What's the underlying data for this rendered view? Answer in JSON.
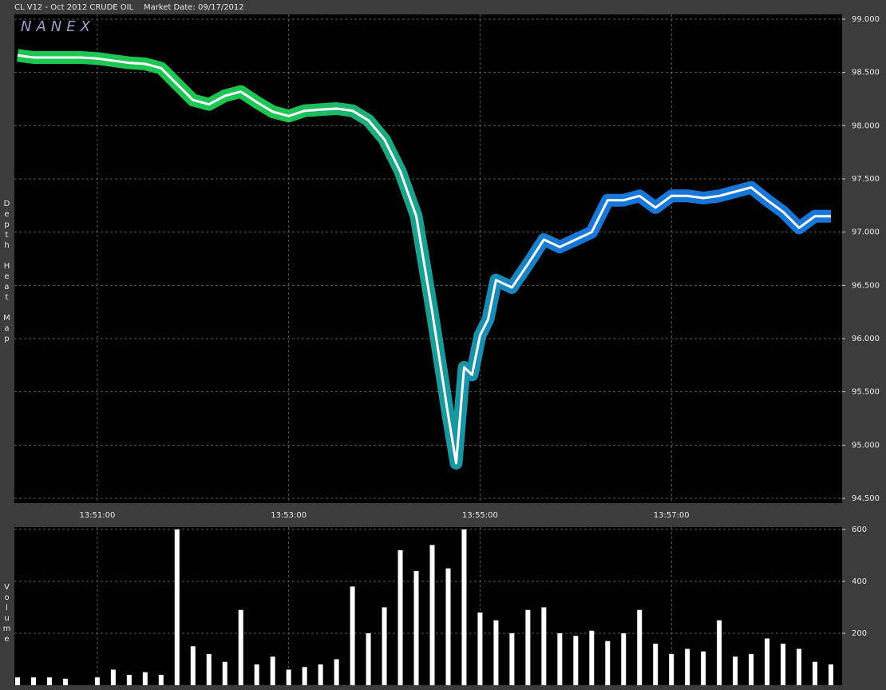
{
  "chart_data": [
    {
      "type": "line",
      "title": "CL V12 - Oct 2012 CRUDE OIL",
      "subtitle": "Market Date: 09/17/2012",
      "watermark": "NANEX",
      "y_label": "Depth Heat Map",
      "color": "#ffffff",
      "heat_colors": [
        "#22e860",
        "#22e860",
        "#1a8cff",
        "#1a8cff"
      ],
      "grid": true,
      "x": [
        "13:50:10",
        "13:50:20",
        "13:50:30",
        "13:50:40",
        "13:50:50",
        "13:51:00",
        "13:51:10",
        "13:51:20",
        "13:51:30",
        "13:51:40",
        "13:51:50",
        "13:52:00",
        "13:52:10",
        "13:52:20",
        "13:52:30",
        "13:52:40",
        "13:52:50",
        "13:53:00",
        "13:53:10",
        "13:53:20",
        "13:53:30",
        "13:53:40",
        "13:53:50",
        "13:54:00",
        "13:54:10",
        "13:54:20",
        "13:54:30",
        "13:54:40",
        "13:54:45",
        "13:54:50",
        "13:54:55",
        "13:55:00",
        "13:55:05",
        "13:55:10",
        "13:55:20",
        "13:55:30",
        "13:55:40",
        "13:55:50",
        "13:56:00",
        "13:56:10",
        "13:56:20",
        "13:56:30",
        "13:56:40",
        "13:56:50",
        "13:57:00",
        "13:57:10",
        "13:57:20",
        "13:57:30",
        "13:57:40",
        "13:57:50",
        "13:58:00",
        "13:58:10",
        "13:58:20",
        "13:58:30",
        "13:58:40"
      ],
      "values": [
        98.66,
        98.64,
        98.64,
        98.64,
        98.64,
        98.63,
        98.61,
        98.59,
        98.58,
        98.54,
        98.39,
        98.24,
        98.2,
        98.28,
        98.32,
        98.22,
        98.13,
        98.09,
        98.14,
        98.15,
        98.16,
        98.14,
        98.05,
        97.87,
        97.57,
        97.15,
        96.25,
        95.28,
        94.83,
        95.73,
        95.66,
        96.03,
        96.18,
        96.55,
        96.48,
        96.7,
        96.93,
        96.86,
        96.93,
        97.0,
        97.3,
        97.3,
        97.34,
        97.23,
        97.34,
        97.34,
        97.32,
        97.34,
        97.38,
        97.42,
        97.3,
        97.19,
        97.04,
        97.15,
        97.15
      ],
      "xlim": [
        "13:50:08",
        "13:58:47"
      ],
      "xticks": [
        "13:51:00",
        "13:53:00",
        "13:55:00",
        "13:57:00"
      ],
      "ylim": [
        94.455,
        99.045
      ],
      "yticks": [
        {
          "value": 94.5,
          "label": "94.500"
        },
        {
          "value": 95,
          "label": "95.000"
        },
        {
          "value": 95.5,
          "label": "95.500"
        },
        {
          "value": 96,
          "label": "96.000"
        },
        {
          "value": 96.5,
          "label": "96.500"
        },
        {
          "value": 97,
          "label": "97.000"
        },
        {
          "value": 97.5,
          "label": "97.500"
        },
        {
          "value": 98,
          "label": "98.000"
        },
        {
          "value": 98.5,
          "label": "98.500"
        },
        {
          "value": 99,
          "label": "99.000"
        }
      ]
    },
    {
      "type": "bar",
      "y_label": "Volume",
      "color": "#ffffff",
      "grid": true,
      "x": [
        "13:50:10",
        "13:50:20",
        "13:50:30",
        "13:50:40",
        "13:50:50",
        "13:51:00",
        "13:51:10",
        "13:51:20",
        "13:51:30",
        "13:51:40",
        "13:51:50",
        "13:52:00",
        "13:52:10",
        "13:52:20",
        "13:52:30",
        "13:52:40",
        "13:52:50",
        "13:53:00",
        "13:53:10",
        "13:53:20",
        "13:53:30",
        "13:53:40",
        "13:53:50",
        "13:54:00",
        "13:54:10",
        "13:54:20",
        "13:54:30",
        "13:54:40",
        "13:54:50",
        "13:55:00",
        "13:55:10",
        "13:55:20",
        "13:55:30",
        "13:55:40",
        "13:55:50",
        "13:56:00",
        "13:56:10",
        "13:56:20",
        "13:56:30",
        "13:56:40",
        "13:56:50",
        "13:57:00",
        "13:57:10",
        "13:57:20",
        "13:57:30",
        "13:57:40",
        "13:57:50",
        "13:58:00",
        "13:58:10",
        "13:58:20",
        "13:58:30",
        "13:58:40"
      ],
      "values": [
        30,
        30,
        30,
        25,
        0,
        30,
        60,
        40,
        50,
        40,
        600,
        150,
        120,
        90,
        290,
        80,
        110,
        60,
        70,
        80,
        100,
        380,
        200,
        300,
        520,
        440,
        540,
        450,
        600,
        280,
        250,
        200,
        290,
        300,
        200,
        190,
        210,
        170,
        200,
        290,
        160,
        120,
        140,
        130,
        250,
        110,
        120,
        180,
        160,
        140,
        90,
        80
      ],
      "xlim": [
        "13:50:08",
        "13:58:47"
      ],
      "ylim": [
        0,
        609
      ],
      "yticks": [
        200,
        400,
        600
      ]
    }
  ]
}
